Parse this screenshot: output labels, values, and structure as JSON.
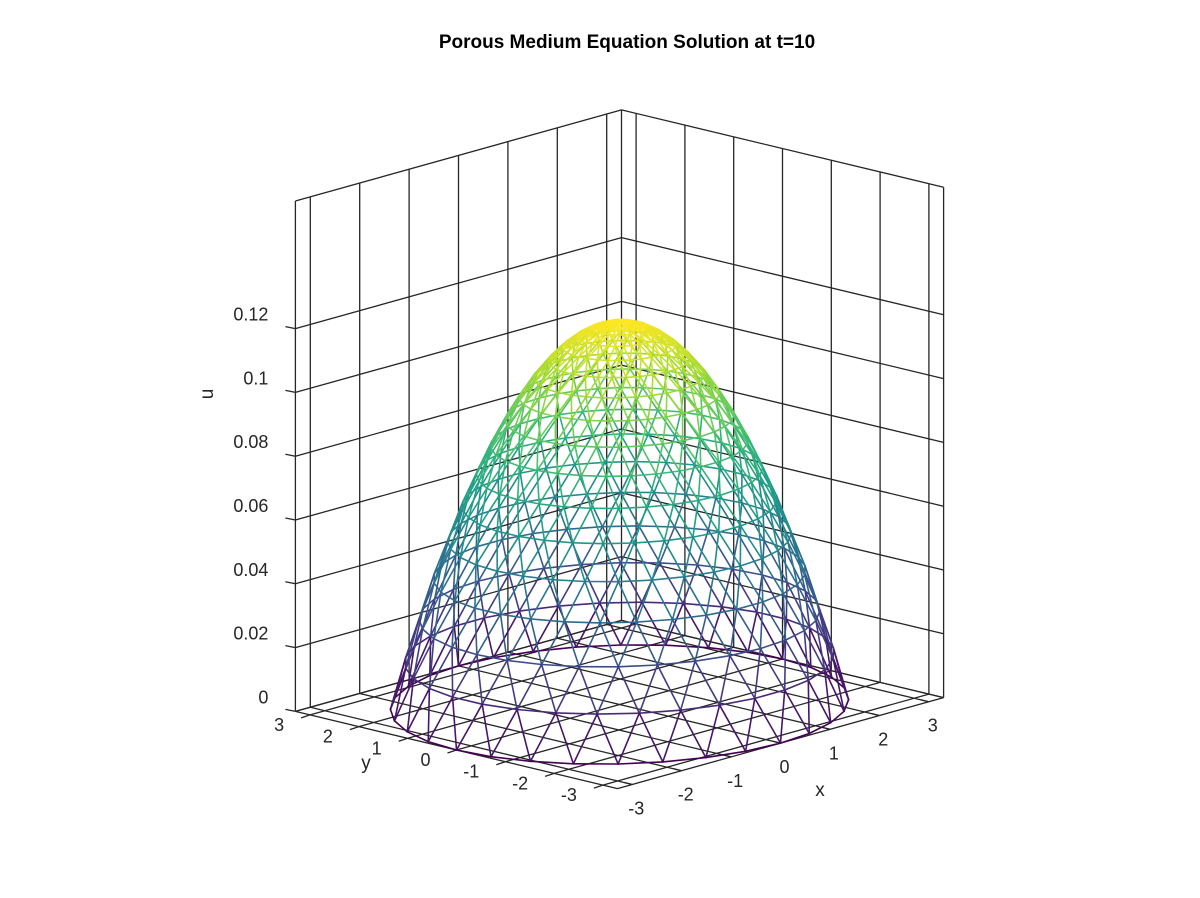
{
  "chart_data": {
    "type": "surface",
    "title": "Porous Medium Equation Solution at t=10",
    "xlabel": "x",
    "ylabel": "y",
    "zlabel": "u",
    "x_ticks": [
      "-3",
      "-2",
      "-1",
      "0",
      "1",
      "2",
      "3"
    ],
    "y_ticks": [
      "-3",
      "-2",
      "-1",
      "0",
      "1",
      "2",
      "3"
    ],
    "z_ticks": [
      "0",
      "0.02",
      "0.04",
      "0.06",
      "0.08",
      "0.1",
      "0.12"
    ],
    "xlim": [
      -3.3,
      3.3
    ],
    "ylim": [
      -3.3,
      3.3
    ],
    "zlim": [
      0,
      0.16
    ],
    "grid": true,
    "colormap": "viridis",
    "surface": {
      "function": "u = max(0, peak * (1 - r^2 / R^2))",
      "peak": 0.12,
      "support_radius": 3.3,
      "domain": "triangulated disk",
      "rings": 16,
      "points_per_ring": 32
    }
  }
}
